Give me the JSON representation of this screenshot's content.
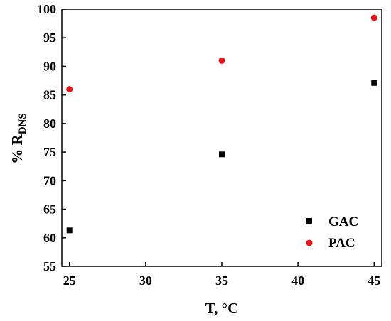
{
  "chart_data": {
    "type": "scatter",
    "xlabel": "T, °C",
    "ylabel_main": "% R",
    "ylabel_sub": "DNS",
    "xlim": [
      24.5,
      45.5
    ],
    "ylim": [
      55,
      100
    ],
    "xticks": [
      25,
      30,
      35,
      40,
      45
    ],
    "yticks": [
      55,
      60,
      65,
      70,
      75,
      80,
      85,
      90,
      95,
      100
    ],
    "series": [
      {
        "name": "GAC",
        "marker": "square",
        "color": "#000000",
        "x": [
          25,
          35,
          45
        ],
        "y": [
          61.3,
          74.6,
          87.1
        ]
      },
      {
        "name": "PAC",
        "marker": "circle",
        "color": "#e8141b",
        "x": [
          25,
          35,
          45
        ],
        "y": [
          86.0,
          91.0,
          98.5
        ]
      }
    ],
    "legend_position": "bottom-right",
    "grid": false
  }
}
